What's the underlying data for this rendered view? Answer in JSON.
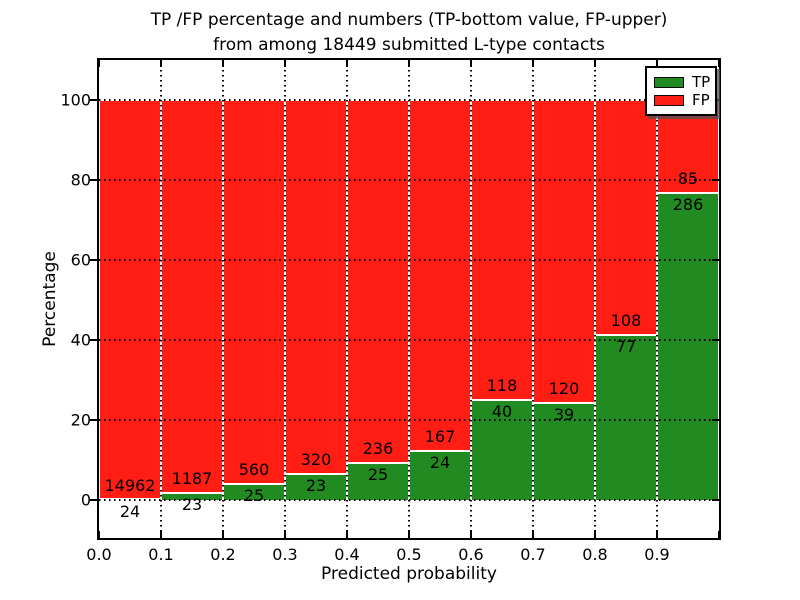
{
  "title": {
    "line1": "TP /FP percentage and numbers (TP-bottom value, FP-upper)",
    "line2": "from among 18449 submitted L-type contacts"
  },
  "axes": {
    "x_label": "Predicted probability",
    "y_label": "Percentage",
    "x_ticks": [
      "0.0",
      "0.1",
      "0.2",
      "0.3",
      "0.4",
      "0.5",
      "0.6",
      "0.7",
      "0.8",
      "0.9"
    ],
    "y_ticks": [
      "0",
      "20",
      "40",
      "60",
      "80",
      "100"
    ]
  },
  "legend": [
    {
      "label": "TP",
      "color": "#218a21"
    },
    {
      "label": "FP",
      "color": "#ff1d14"
    }
  ],
  "colors": {
    "tp_green": "#218a21",
    "fp_red": "#ff1d14",
    "grid": "#000000",
    "background": "#ffffff"
  },
  "chart_data": {
    "type": "bar",
    "stacked": true,
    "normalized_to_percent": true,
    "title": "TP /FP percentage and numbers (TP-bottom value, FP-upper) from among 18449 submitted L-type contacts",
    "xlabel": "Predicted probability",
    "ylabel": "Percentage",
    "total_contacts": 18449,
    "bin_edges": [
      0.0,
      0.1,
      0.2,
      0.3,
      0.4,
      0.5,
      0.6,
      0.7,
      0.8,
      0.9,
      1.0
    ],
    "categories": [
      "0.0-0.1",
      "0.1-0.2",
      "0.2-0.3",
      "0.3-0.4",
      "0.4-0.5",
      "0.5-0.6",
      "0.6-0.7",
      "0.7-0.8",
      "0.8-0.9",
      "0.9-1.0"
    ],
    "series": [
      {
        "name": "TP",
        "color": "#218a21",
        "counts": [
          24,
          23,
          25,
          23,
          25,
          24,
          40,
          39,
          77,
          286
        ]
      },
      {
        "name": "FP",
        "color": "#ff1d14",
        "counts": [
          14962,
          1187,
          560,
          320,
          236,
          167,
          118,
          120,
          108,
          85
        ]
      }
    ],
    "tp_percent": [
      0.16,
      1.9,
      4.27,
      6.71,
      9.58,
      12.57,
      25.32,
      24.53,
      41.62,
      77.09
    ],
    "xlim": [
      0.0,
      1.0
    ],
    "ylim": [
      -10,
      110
    ],
    "y_major_ticks": [
      0,
      20,
      40,
      60,
      80,
      100
    ],
    "grid": "dotted",
    "legend_position": "upper right"
  }
}
